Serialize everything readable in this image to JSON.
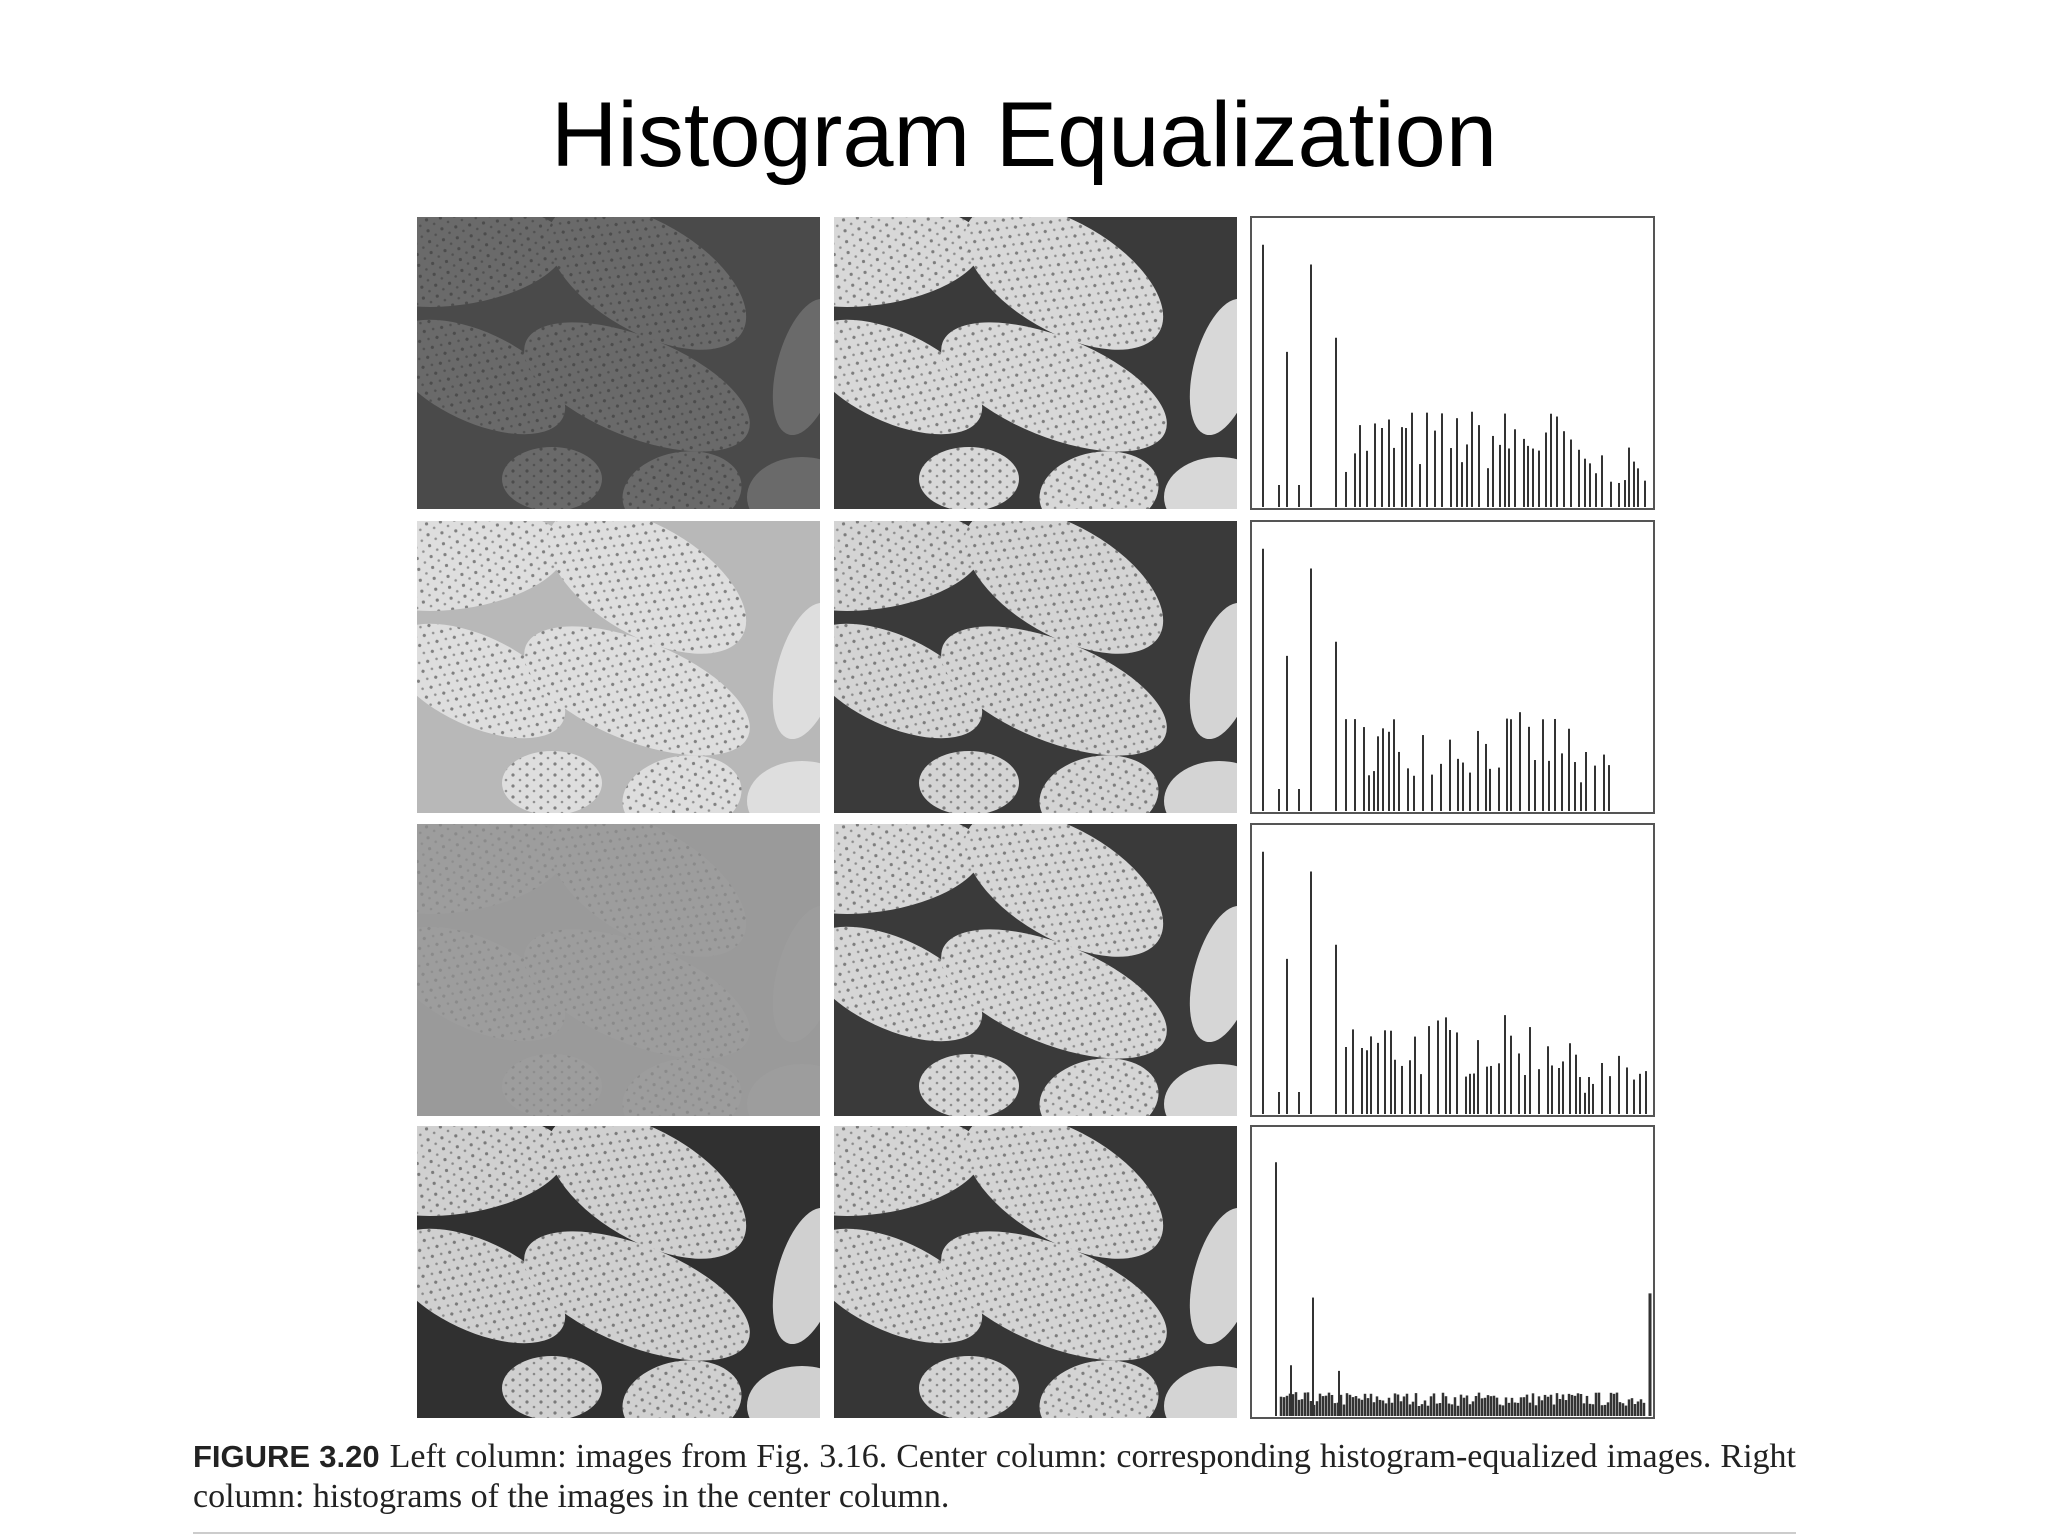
{
  "title": "Histogram Equalization",
  "figure": {
    "label": "FIGURE 3.20",
    "caption": "Left column: images from Fig. 3.16. Center column: corresponding histogram-equalized images. Right column: histograms of the images in the center column."
  }
}
